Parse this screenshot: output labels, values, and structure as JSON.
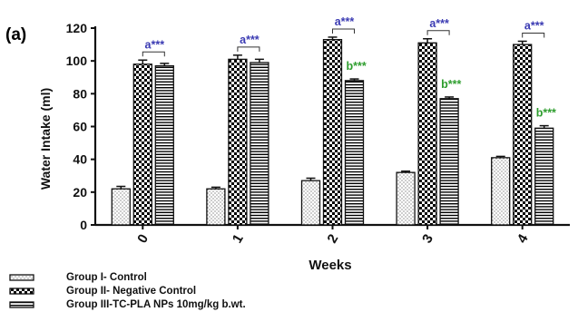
{
  "panel_label": "(a)",
  "chart_data": {
    "type": "bar",
    "xlabel": "Weeks",
    "ylabel": "Water Intake (ml)",
    "ylim": [
      0,
      120
    ],
    "yticks": [
      "0",
      "20",
      "40",
      "60",
      "80",
      "100",
      "120"
    ],
    "categories": [
      "0",
      "1",
      "2",
      "3",
      "4"
    ],
    "grid": false,
    "legend_position": "bottom-left",
    "series": [
      {
        "name": "Group I- Control",
        "pattern": "dots",
        "values": [
          22,
          22,
          27,
          32,
          41
        ],
        "errors": [
          1.5,
          1,
          1.5,
          0.8,
          0.8
        ]
      },
      {
        "name": "Group II- Negative Control",
        "pattern": "checker",
        "values": [
          98,
          101,
          113,
          111,
          110
        ],
        "errors": [
          2.5,
          2.5,
          1.5,
          2.5,
          2
        ]
      },
      {
        "name": "Group III-TC-PLA NPs 10mg/kg b.wt.",
        "pattern": "hlines",
        "values": [
          97,
          99,
          88,
          77,
          59
        ],
        "errors": [
          1.5,
          2,
          1,
          1,
          1.5
        ]
      }
    ],
    "annotations": {
      "a_text": "a***",
      "a_color": "#3b3bb3",
      "b_text": "b***",
      "b_color": "#2f9e2f",
      "b_categories": [
        "2",
        "3",
        "4"
      ]
    }
  }
}
